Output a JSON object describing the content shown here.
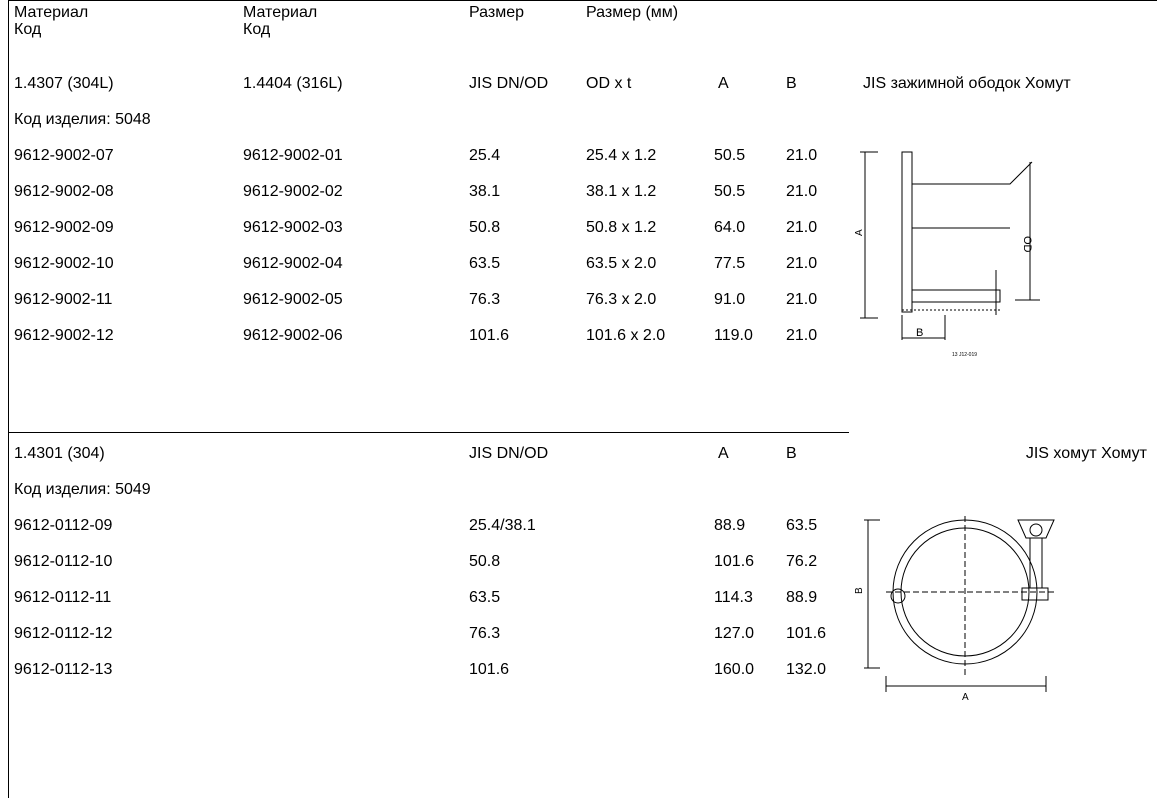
{
  "header": {
    "mat1": "Материал",
    "code1": "Код",
    "mat2": "Материал",
    "code2": "Код",
    "size": "Размер",
    "size_mm": "Размер (мм)"
  },
  "section1": {
    "material1": "1.4307 (304L)",
    "material2": "1.4404 (316L)",
    "col_dn": "JIS DN/OD",
    "col_odxt": "OD x t",
    "col_a": "A",
    "col_b": "B",
    "title": "JIS зажимной ободок Хомут",
    "product_code": "Код изделия: 5048",
    "rows": [
      {
        "c1": "9612-9002-07",
        "c2": "9612-9002-01",
        "dn": "25.4",
        "odxt": "25.4 x 1.2",
        "a": "50.5",
        "b": "21.0"
      },
      {
        "c1": "9612-9002-08",
        "c2": "9612-9002-02",
        "dn": "38.1",
        "odxt": "38.1 x 1.2",
        "a": "50.5",
        "b": "21.0"
      },
      {
        "c1": "9612-9002-09",
        "c2": "9612-9002-03",
        "dn": "50.8",
        "odxt": "50.8 x 1.2",
        "a": "64.0",
        "b": "21.0"
      },
      {
        "c1": "9612-9002-10",
        "c2": "9612-9002-04",
        "dn": "63.5",
        "odxt": "63.5 x 2.0",
        "a": "77.5",
        "b": "21.0"
      },
      {
        "c1": "9612-9002-11",
        "c2": "9612-9002-05",
        "dn": "76.3",
        "odxt": "76.3 x 2.0",
        "a": "91.0",
        "b": "21.0"
      },
      {
        "c1": "9612-9002-12",
        "c2": "9612-9002-06",
        "dn": "101.6",
        "odxt": "101.6 x 2.0",
        "a": "119.0",
        "b": "21.0"
      }
    ],
    "drawing": {
      "label_a": "A",
      "label_b": "B",
      "label_od": "OD",
      "label_ref": "13 J12-019"
    }
  },
  "section2": {
    "material": "1.4301 (304)",
    "col_dn": "JIS DN/OD",
    "col_a": "A",
    "col_b": "B",
    "title": "JIS хомут Хомут",
    "product_code": "Код изделия: 5049",
    "rows": [
      {
        "c1": "9612-0112-09",
        "dn": "25.4/38.1",
        "a": "88.9",
        "b": "63.5"
      },
      {
        "c1": "9612-0112-10",
        "dn": "50.8",
        "a": "101.6",
        "b": "76.2"
      },
      {
        "c1": "9612-0112-11",
        "dn": "63.5",
        "a": "114.3",
        "b": "88.9"
      },
      {
        "c1": "9612-0112-12",
        "dn": "76.3",
        "a": "127.0",
        "b": "101.6"
      },
      {
        "c1": "9612-0112-13",
        "dn": "101.6",
        "a": "160.0",
        "b": "132.0"
      }
    ],
    "drawing": {
      "label_a": "A",
      "label_b": "B"
    }
  }
}
